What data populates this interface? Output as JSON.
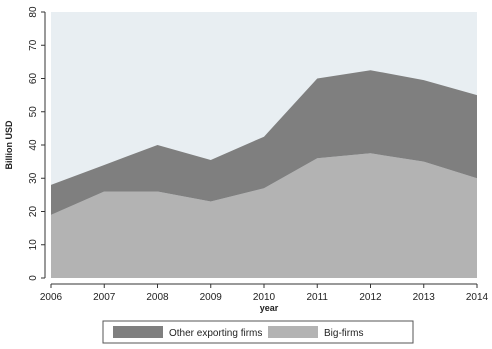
{
  "chart_data": {
    "type": "area",
    "stacked": true,
    "xlabel": "year",
    "ylabel": "Billion USD",
    "x": [
      2006,
      2007,
      2008,
      2009,
      2010,
      2011,
      2012,
      2013,
      2014
    ],
    "ylim": [
      0,
      80
    ],
    "yticks": [
      0,
      10,
      20,
      30,
      40,
      50,
      60,
      70,
      80
    ],
    "grid": false,
    "legend_position": "bottom",
    "series": [
      {
        "name": "Big-firms",
        "color": "#b3b3b3",
        "values": [
          19,
          26,
          26,
          23,
          27,
          36,
          37.5,
          35,
          30
        ]
      },
      {
        "name": "Other exporting firms",
        "color": "#7f7f7f",
        "values": [
          9,
          8,
          14,
          12.5,
          15.5,
          24,
          25,
          24.5,
          25
        ]
      }
    ],
    "plot_background": "#e8eef2"
  }
}
